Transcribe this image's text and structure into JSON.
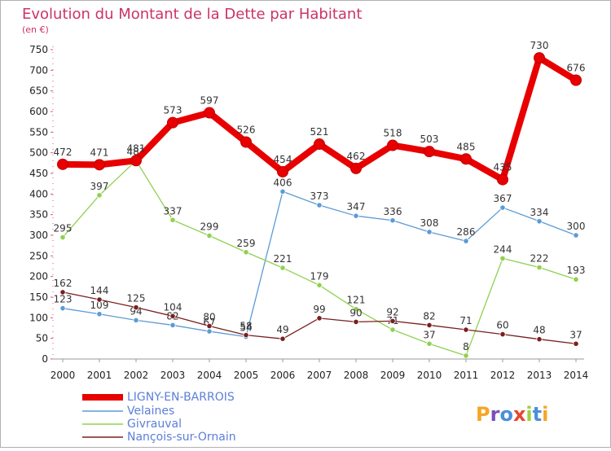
{
  "chart_data": {
    "type": "line",
    "title": "Evolution du Montant de la Dette par Habitant",
    "subtitle": "(en €)",
    "xlabel": "",
    "ylabel": "",
    "x": [
      "2000",
      "2001",
      "2002",
      "2003",
      "2004",
      "2005",
      "2006",
      "2007",
      "2008",
      "2009",
      "2010",
      "2011",
      "2012",
      "2013",
      "2014"
    ],
    "ylim": [
      0,
      750
    ],
    "yticks": [
      0,
      50,
      100,
      150,
      200,
      250,
      300,
      350,
      400,
      450,
      500,
      550,
      600,
      650,
      700,
      750
    ],
    "grid": "none",
    "legend": "bottom-left",
    "series": [
      {
        "name": "LIGNY-EN-BARROIS",
        "color": "#e80000",
        "values": [
          472,
          471,
          481,
          573,
          597,
          526,
          454,
          521,
          462,
          518,
          503,
          485,
          435,
          730,
          676
        ]
      },
      {
        "name": "Velaines",
        "color": "#5b9bd5",
        "values": [
          123,
          109,
          94,
          82,
          67,
          54,
          406,
          373,
          347,
          336,
          308,
          286,
          367,
          334,
          300
        ]
      },
      {
        "name": "Givrauval",
        "color": "#8fd14f",
        "values": [
          295,
          397,
          481,
          337,
          299,
          259,
          221,
          179,
          121,
          71,
          37,
          8,
          244,
          222,
          193
        ]
      },
      {
        "name": "Nançois-sur-Ornain",
        "color": "#7a1f1f",
        "values": [
          162,
          144,
          125,
          104,
          80,
          58,
          49,
          99,
          90,
          92,
          82,
          71,
          60,
          48,
          37
        ]
      }
    ]
  },
  "logo": {
    "text": "Proxiti"
  }
}
